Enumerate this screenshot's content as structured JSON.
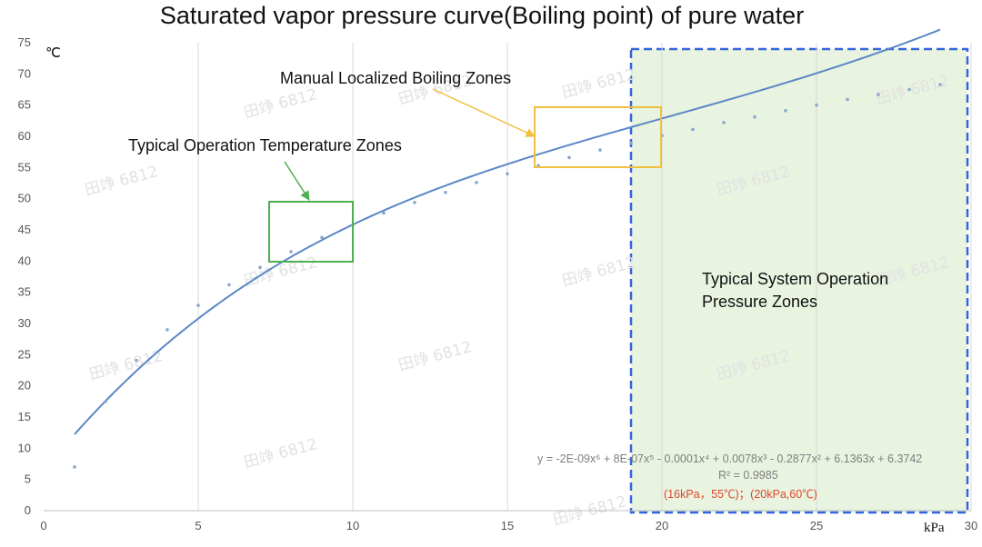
{
  "chart_data": {
    "type": "scatter",
    "title": "Saturated vapor pressure curve(Boiling point) of pure water",
    "xlabel": "kPa",
    "ylabel": "℃",
    "xlim": [
      0,
      30
    ],
    "ylim": [
      0,
      75
    ],
    "x_ticks": [
      0,
      5,
      10,
      15,
      20,
      25,
      30
    ],
    "y_ticks": [
      0,
      5,
      10,
      15,
      20,
      25,
      30,
      35,
      40,
      45,
      50,
      55,
      60,
      65,
      70,
      75
    ],
    "grid": "vertical",
    "series": [
      {
        "name": "Boiling point",
        "x": [
          1,
          2,
          3,
          4,
          5,
          6,
          7,
          8,
          9,
          10,
          11,
          12,
          13,
          14,
          15,
          16,
          17,
          18,
          19,
          20,
          21,
          22,
          23,
          24,
          25,
          26,
          27,
          28,
          29
        ],
        "y": [
          7.0,
          17.5,
          24.1,
          29.0,
          32.9,
          36.2,
          39.0,
          41.5,
          43.8,
          45.8,
          47.7,
          49.4,
          51.0,
          52.6,
          54.0,
          55.3,
          56.6,
          57.8,
          58.9,
          60.1,
          61.1,
          62.2,
          63.1,
          64.1,
          65.0,
          65.9,
          66.7,
          67.5,
          68.3
        ]
      }
    ],
    "trendline": {
      "type": "polynomial",
      "order": 6,
      "equation": "y = -2E-09x⁶ + 8E-07x⁵ - 0.0001x⁴ + 0.0078x³ - 0.2877x² + 6.1363x + 6.3742",
      "r_squared": "R² = 0.9985"
    },
    "note": "(16kPa，55℃)；(20kPa,60℃)",
    "annotations": [
      {
        "label": "Typical Operation Temperature Zones",
        "x_range": [
          7.4,
          10.0
        ],
        "y_range": [
          40,
          49.5
        ],
        "color": "#4caf50"
      },
      {
        "label": "Manual Localized Boiling Zones",
        "x_range": [
          16.0,
          20.0
        ],
        "y_range": [
          55.3,
          65.0
        ],
        "color": "#f0c040"
      },
      {
        "label": "Typical System Operation Pressure Zones",
        "x_range": [
          19.0,
          30.0
        ],
        "y_range": [
          0,
          75
        ],
        "color": "#3366dd"
      }
    ],
    "watermark": "田竫 6812",
    "colors": {
      "curve": "#5b87c7",
      "points": "#8aa6cf",
      "green_zone": "#4caf50",
      "yellow_zone": "#f0c040",
      "blue_zone_border": "#3366dd",
      "blue_zone_fill": "#e8f3e0",
      "note": "#e0472c"
    }
  }
}
